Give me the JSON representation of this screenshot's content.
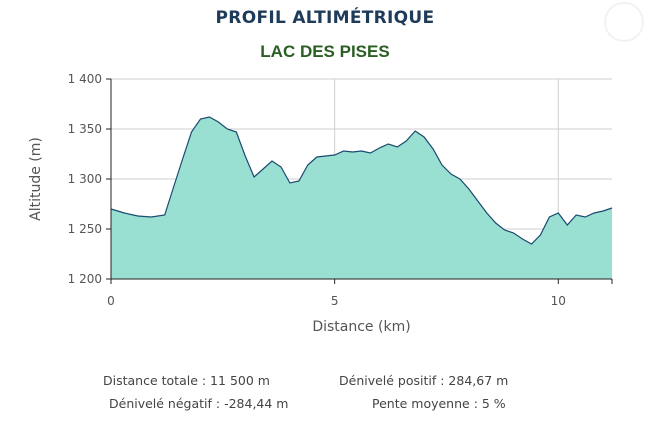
{
  "title": "PROFIL ALTIMÉTRIQUE",
  "subtitle": "LAC DES PISES",
  "chart_data": {
    "type": "area",
    "xlabel": "Distance (km)",
    "ylabel": "Altitude (m)",
    "xlim": [
      0,
      11.2
    ],
    "ylim": [
      1200,
      1400
    ],
    "x_ticks": [
      0,
      5,
      10
    ],
    "x_tick_labels": [
      "0",
      "5",
      "10"
    ],
    "y_ticks": [
      1200,
      1250,
      1300,
      1350,
      1400
    ],
    "y_tick_labels": [
      "1 200",
      "1 250",
      "1 300",
      "1 350",
      "1 400"
    ],
    "grid": true,
    "fill_color": "#99e0d2",
    "line_color": "#1a4a6e",
    "series": [
      {
        "x": [
          0,
          0.3,
          0.6,
          0.9,
          1.2,
          1.4,
          1.6,
          1.8,
          2.0,
          2.2,
          2.4,
          2.6,
          2.8,
          3.0,
          3.2,
          3.4,
          3.6,
          3.8,
          4.0,
          4.2,
          4.4,
          4.6,
          4.8,
          5.0,
          5.2,
          5.4,
          5.6,
          5.8,
          6.0,
          6.2,
          6.4,
          6.6,
          6.8,
          7.0,
          7.2,
          7.4,
          7.6,
          7.8,
          8.0,
          8.2,
          8.4,
          8.6,
          8.8,
          9.0,
          9.2,
          9.4,
          9.6,
          9.8,
          10.0,
          10.2,
          10.4,
          10.6,
          10.8,
          11.0,
          11.2
        ],
        "values": [
          1270,
          1266,
          1263,
          1262,
          1264,
          1292,
          1320,
          1347,
          1360,
          1362,
          1357,
          1350,
          1347,
          1323,
          1302,
          1310,
          1318,
          1312,
          1296,
          1298,
          1314,
          1322,
          1323,
          1324,
          1328,
          1327,
          1328,
          1326,
          1331,
          1335,
          1332,
          1338,
          1348,
          1342,
          1330,
          1314,
          1305,
          1300,
          1290,
          1278,
          1266,
          1256,
          1249,
          1246,
          1240,
          1235,
          1244,
          1262,
          1266,
          1254,
          1264,
          1262,
          1266,
          1268,
          1271
        ]
      }
    ]
  },
  "stats": {
    "distance_totale": "Distance totale : 11 500 m",
    "denivele_positif": "Dénivelé positif : 284,67 m",
    "denivele_negatif": "Dénivelé négatif : -284,44 m",
    "pente_moyenne": "Pente moyenne : 5 %"
  }
}
